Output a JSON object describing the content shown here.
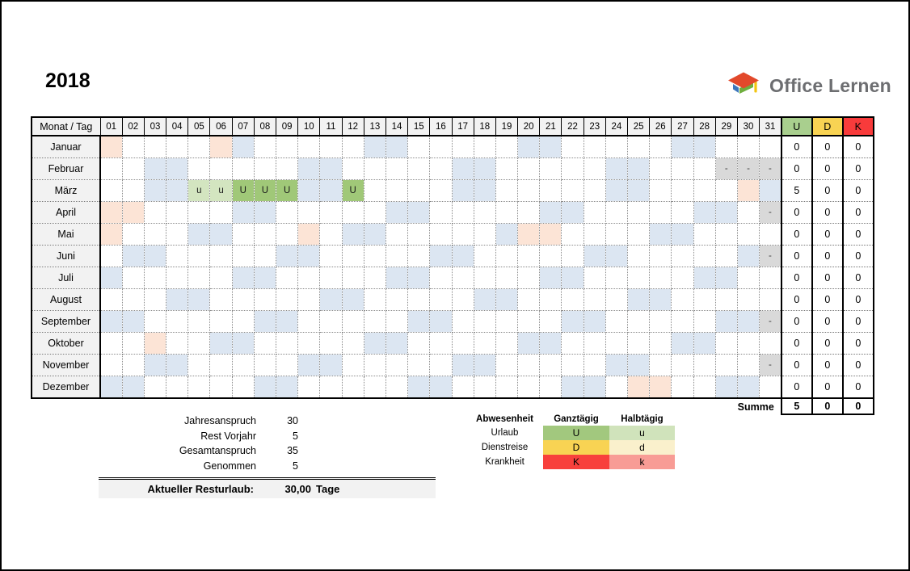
{
  "title": "2018",
  "logo": {
    "text": "Office Lernen"
  },
  "colors": {
    "weekend": "#DCE6F2",
    "holiday": "#FCE4D6",
    "disabled": "#D9D9D9",
    "vacation_full": "#A0C878",
    "vacation_half": "#D3E5C0",
    "header_bg": "#F2F2F2",
    "summary_u": "#A9CF8E",
    "summary_d": "#F8D353",
    "summary_k": "#F83B3B",
    "bar_bg": "#F2F2F2"
  },
  "calendar": {
    "corner_label": "Monat / Tag",
    "day_headers": [
      "01",
      "02",
      "03",
      "04",
      "05",
      "06",
      "07",
      "08",
      "09",
      "10",
      "11",
      "12",
      "13",
      "14",
      "15",
      "16",
      "17",
      "18",
      "19",
      "20",
      "21",
      "22",
      "23",
      "24",
      "25",
      "26",
      "27",
      "28",
      "29",
      "30",
      "31"
    ],
    "summary_headers": [
      "U",
      "D",
      "K"
    ],
    "months": [
      {
        "name": "Januar",
        "days": {
          "1": "hol",
          "6": "hol",
          "7": "we",
          "13": "we",
          "14": "we",
          "20": "we",
          "21": "we",
          "27": "we",
          "28": "we"
        },
        "summary": [
          "0",
          "0",
          "0"
        ]
      },
      {
        "name": "Februar",
        "days": {
          "3": "we",
          "4": "we",
          "10": "we",
          "11": "we",
          "17": "we",
          "18": "we",
          "24": "we",
          "25": "we",
          "29": "off",
          "30": "off",
          "31": "off"
        },
        "summary": [
          "0",
          "0",
          "0"
        ]
      },
      {
        "name": "März",
        "days": {
          "3": "we",
          "4": "we",
          "5": "u",
          "6": "u",
          "7": "U",
          "8": "U",
          "9": "U",
          "10": "we",
          "11": "we",
          "12": "U",
          "17": "we",
          "18": "we",
          "24": "we",
          "25": "we",
          "30": "hol",
          "31": "we"
        },
        "summary": [
          "5",
          "0",
          "0"
        ]
      },
      {
        "name": "April",
        "days": {
          "1": "hol",
          "2": "hol",
          "7": "we",
          "8": "we",
          "14": "we",
          "15": "we",
          "21": "we",
          "22": "we",
          "28": "we",
          "29": "we",
          "31": "off"
        },
        "summary": [
          "0",
          "0",
          "0"
        ]
      },
      {
        "name": "Mai",
        "days": {
          "1": "hol",
          "5": "we",
          "6": "we",
          "10": "hol",
          "12": "we",
          "13": "we",
          "19": "we",
          "20": "hol",
          "21": "hol",
          "26": "we",
          "27": "we"
        },
        "summary": [
          "0",
          "0",
          "0"
        ]
      },
      {
        "name": "Juni",
        "days": {
          "2": "we",
          "3": "we",
          "9": "we",
          "10": "we",
          "16": "we",
          "17": "we",
          "23": "we",
          "24": "we",
          "30": "we",
          "31": "off"
        },
        "summary": [
          "0",
          "0",
          "0"
        ]
      },
      {
        "name": "Juli",
        "days": {
          "1": "we",
          "7": "we",
          "8": "we",
          "14": "we",
          "15": "we",
          "21": "we",
          "22": "we",
          "28": "we",
          "29": "we"
        },
        "summary": [
          "0",
          "0",
          "0"
        ]
      },
      {
        "name": "August",
        "days": {
          "4": "we",
          "5": "we",
          "11": "we",
          "12": "we",
          "18": "we",
          "19": "we",
          "25": "we",
          "26": "we"
        },
        "summary": [
          "0",
          "0",
          "0"
        ]
      },
      {
        "name": "September",
        "days": {
          "1": "we",
          "2": "we",
          "8": "we",
          "9": "we",
          "15": "we",
          "16": "we",
          "22": "we",
          "23": "we",
          "29": "we",
          "30": "we",
          "31": "off"
        },
        "summary": [
          "0",
          "0",
          "0"
        ]
      },
      {
        "name": "Oktober",
        "days": {
          "3": "hol",
          "6": "we",
          "7": "we",
          "13": "we",
          "14": "we",
          "20": "we",
          "21": "we",
          "27": "we",
          "28": "we"
        },
        "summary": [
          "0",
          "0",
          "0"
        ]
      },
      {
        "name": "November",
        "days": {
          "3": "we",
          "4": "we",
          "10": "we",
          "11": "we",
          "17": "we",
          "18": "we",
          "24": "we",
          "25": "we",
          "31": "off"
        },
        "summary": [
          "0",
          "0",
          "0"
        ]
      },
      {
        "name": "Dezember",
        "days": {
          "1": "we",
          "2": "we",
          "8": "we",
          "9": "we",
          "15": "we",
          "16": "we",
          "22": "we",
          "23": "we",
          "25": "hol",
          "26": "hol",
          "29": "we",
          "30": "we"
        },
        "summary": [
          "0",
          "0",
          "0"
        ]
      }
    ],
    "summe_label": "Summe",
    "summe_values": [
      "5",
      "0",
      "0"
    ]
  },
  "stats": {
    "rows": [
      {
        "label": "Jahresanspruch",
        "value": "30"
      },
      {
        "label": "Rest Vorjahr",
        "value": "5"
      },
      {
        "label": "Gesamtanspruch",
        "value": "35"
      },
      {
        "label": "Genommen",
        "value": "5"
      }
    ],
    "result": {
      "label": "Aktueller Resturlaub:",
      "value": "30,00",
      "unit": "Tage"
    }
  },
  "legend": {
    "headers": [
      "Abwesenheit",
      "Ganztägig",
      "Halbtägig"
    ],
    "rows": [
      {
        "label": "Urlaub",
        "full": "U",
        "full_color": "#A2C87E",
        "half": "u",
        "half_color": "#D0E3BB"
      },
      {
        "label": "Dienstreise",
        "full": "D",
        "full_color": "#F8D353",
        "half": "d",
        "half_color": "#FAF0CC"
      },
      {
        "label": "Krankheit",
        "full": "K",
        "full_color": "#F8403C",
        "half": "k",
        "half_color": "#F89C95"
      }
    ]
  }
}
